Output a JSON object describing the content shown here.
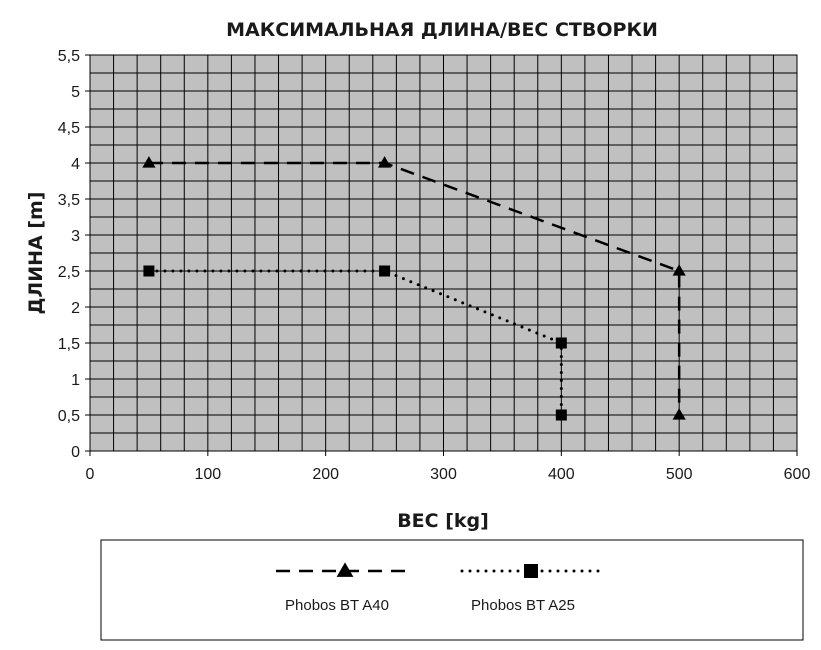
{
  "chart_data": {
    "type": "line",
    "title": "МАКСИМАЛЬНАЯ ДЛИНА/ВЕС СТВОРКИ",
    "xlabel": "ВЕС [kg]",
    "ylabel": "ДЛИНА  [m]",
    "xlim": [
      0,
      600
    ],
    "ylim": [
      0,
      5.5
    ],
    "x_ticks": [
      0,
      100,
      200,
      300,
      400,
      500,
      600
    ],
    "x_tick_labels": [
      "0",
      "100",
      "200",
      "300",
      "400",
      "500",
      "600"
    ],
    "y_ticks": [
      0,
      0.5,
      1,
      1.5,
      2,
      2.5,
      3,
      3.5,
      4,
      4.5,
      5,
      5.5
    ],
    "y_tick_labels": [
      "0",
      "0,5",
      "1",
      "1,5",
      "2",
      "2,5",
      "3",
      "3,5",
      "4",
      "4,5",
      "5",
      "5,5"
    ],
    "grid": true,
    "minor_grid_step_x": 20,
    "minor_grid_step_y": 0.25,
    "plot_background": "#c0c0c0",
    "legend_position": "bottom",
    "series": [
      {
        "name": "Phobos BT A40",
        "line_style": "dashed",
        "marker": "triangle",
        "color": "#000000",
        "x": [
          50,
          250,
          500,
          500
        ],
        "y": [
          4,
          4,
          2.5,
          0.5
        ]
      },
      {
        "name": "Phobos BT A25",
        "line_style": "dotted",
        "marker": "square",
        "color": "#000000",
        "x": [
          50,
          250,
          400,
          400
        ],
        "y": [
          2.5,
          2.5,
          1.5,
          0.5
        ]
      }
    ]
  }
}
